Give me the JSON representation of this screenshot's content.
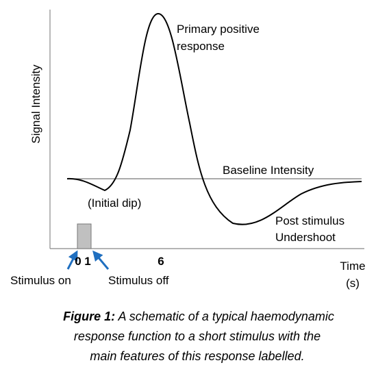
{
  "axes": {
    "y_label": "Signal Intensity",
    "x_label": "Time",
    "x_unit": "(s)",
    "ticks": [
      "0",
      "1",
      "6"
    ]
  },
  "annotations": {
    "peak": [
      "Primary positive",
      "response"
    ],
    "baseline": "Baseline Intensity",
    "dip": "(Initial dip)",
    "undershoot": [
      "Post stimulus",
      "Undershoot"
    ],
    "stimulus_on": "Stimulus on",
    "stimulus_off": "Stimulus off"
  },
  "caption": {
    "label": "Figure 1:",
    "lines": [
      "A schematic of a typical haemodynamic",
      "response function to a short stimulus with the",
      "main features of this response labelled."
    ]
  }
}
